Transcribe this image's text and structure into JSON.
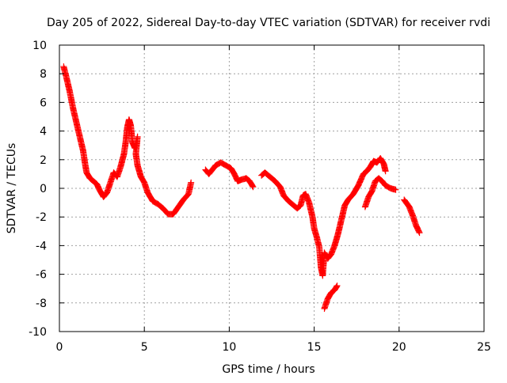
{
  "chart_data": {
    "type": "scatter",
    "title": "Day 205 of 2022, Sidereal Day-to-day VTEC variation (SDTVAR) for receiver rvdi",
    "xlabel": "GPS time / hours",
    "ylabel": "SDTVAR / TECUs",
    "xlim": [
      0,
      25
    ],
    "ylim": [
      -10,
      10
    ],
    "xticks": [
      0,
      5,
      10,
      15,
      20,
      25
    ],
    "yticks": [
      -10,
      -8,
      -6,
      -4,
      -2,
      0,
      2,
      4,
      6,
      8,
      10
    ],
    "xtick_labels": [
      "0",
      "5",
      "10",
      "15",
      "20",
      "25"
    ],
    "ytick_labels": [
      "-10",
      "-8",
      "-6",
      "-4",
      "-2",
      "0",
      "2",
      "4",
      "6",
      "8",
      "10"
    ],
    "grid": true,
    "marker": "+",
    "color": "#ff0000",
    "series": [
      {
        "name": "SDTVAR",
        "segments": [
          [
            [
              0.25,
              8.5
            ],
            [
              0.4,
              7.8
            ],
            [
              0.6,
              6.8
            ],
            [
              0.8,
              5.6
            ],
            [
              1.0,
              4.6
            ],
            [
              1.2,
              3.6
            ],
            [
              1.4,
              2.6
            ],
            [
              1.5,
              1.8
            ],
            [
              1.6,
              1.1
            ],
            [
              1.8,
              0.7
            ],
            [
              2.0,
              0.5
            ],
            [
              2.2,
              0.3
            ],
            [
              2.4,
              -0.2
            ],
            [
              2.6,
              -0.6
            ],
            [
              2.8,
              -0.3
            ],
            [
              3.0,
              0.4
            ],
            [
              3.2,
              1.1
            ],
            [
              3.4,
              0.8
            ],
            [
              3.6,
              1.5
            ],
            [
              3.8,
              2.4
            ],
            [
              3.9,
              3.2
            ],
            [
              4.0,
              4.3
            ],
            [
              4.1,
              4.8
            ],
            [
              4.2,
              4.4
            ],
            [
              4.3,
              3.2
            ],
            [
              4.45,
              2.8
            ],
            [
              4.6,
              3.6
            ],
            [
              4.5,
              2.4
            ],
            [
              4.6,
              1.6
            ],
            [
              4.8,
              0.8
            ],
            [
              5.0,
              0.4
            ],
            [
              5.2,
              -0.3
            ],
            [
              5.5,
              -0.9
            ],
            [
              5.8,
              -1.1
            ],
            [
              6.1,
              -1.4
            ],
            [
              6.4,
              -1.8
            ],
            [
              6.7,
              -1.8
            ],
            [
              7.0,
              -1.3
            ],
            [
              7.3,
              -0.8
            ],
            [
              7.6,
              -0.4
            ],
            [
              7.75,
              0.4
            ]
          ],
          [
            [
              8.6,
              1.3
            ],
            [
              8.8,
              1.0
            ],
            [
              9.0,
              1.3
            ],
            [
              9.2,
              1.6
            ],
            [
              9.5,
              1.8
            ],
            [
              9.8,
              1.6
            ],
            [
              10.1,
              1.4
            ],
            [
              10.3,
              1.0
            ],
            [
              10.5,
              0.5
            ],
            [
              10.7,
              0.6
            ],
            [
              11.0,
              0.7
            ],
            [
              11.2,
              0.5
            ],
            [
              11.4,
              0.1
            ]
          ],
          [
            [
              11.9,
              0.9
            ],
            [
              12.1,
              1.1
            ],
            [
              12.4,
              0.8
            ],
            [
              12.7,
              0.5
            ],
            [
              13.0,
              0.1
            ],
            [
              13.2,
              -0.5
            ],
            [
              13.5,
              -0.9
            ],
            [
              13.8,
              -1.2
            ],
            [
              14.0,
              -1.4
            ],
            [
              14.2,
              -1.2
            ],
            [
              14.35,
              -0.5
            ],
            [
              14.5,
              -0.4
            ],
            [
              14.7,
              -1.0
            ],
            [
              14.9,
              -2.0
            ],
            [
              15.0,
              -2.8
            ],
            [
              15.15,
              -3.4
            ],
            [
              15.3,
              -4.1
            ],
            [
              15.4,
              -5.5
            ],
            [
              15.5,
              -6.1
            ],
            [
              15.6,
              -4.5
            ],
            [
              15.8,
              -4.9
            ],
            [
              16.0,
              -4.6
            ],
            [
              16.2,
              -4.0
            ],
            [
              16.4,
              -3.2
            ],
            [
              16.6,
              -2.2
            ],
            [
              16.8,
              -1.2
            ],
            [
              17.0,
              -0.8
            ],
            [
              17.3,
              -0.4
            ],
            [
              17.6,
              0.2
            ],
            [
              17.9,
              1.0
            ],
            [
              18.1,
              1.2
            ],
            [
              18.3,
              1.5
            ],
            [
              18.5,
              1.9
            ],
            [
              18.7,
              1.8
            ],
            [
              18.9,
              2.1
            ],
            [
              19.1,
              1.7
            ],
            [
              19.2,
              1.2
            ]
          ],
          [
            [
              18.0,
              -1.3
            ],
            [
              18.2,
              -0.6
            ],
            [
              18.4,
              -0.2
            ],
            [
              18.6,
              0.5
            ],
            [
              18.8,
              0.7
            ],
            [
              19.0,
              0.5
            ],
            [
              19.2,
              0.2
            ],
            [
              19.5,
              0.0
            ],
            [
              19.8,
              -0.1
            ]
          ],
          [
            [
              15.6,
              -8.4
            ],
            [
              15.8,
              -7.7
            ],
            [
              16.0,
              -7.3
            ],
            [
              16.2,
              -7.1
            ],
            [
              16.35,
              -6.8
            ]
          ],
          [
            [
              20.3,
              -0.8
            ],
            [
              20.6,
              -1.3
            ],
            [
              20.8,
              -1.9
            ],
            [
              21.0,
              -2.6
            ],
            [
              21.2,
              -3.1
            ]
          ]
        ]
      }
    ]
  }
}
